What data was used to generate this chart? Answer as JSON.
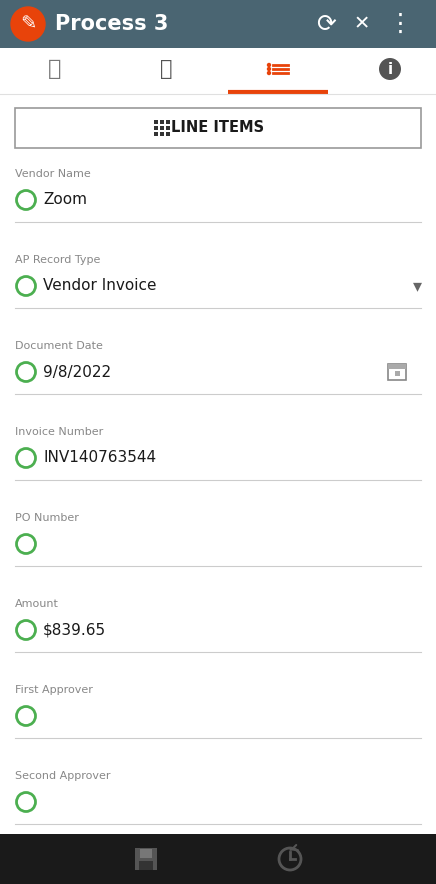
{
  "title": "Process 3",
  "header_bg": "#4a6572",
  "header_text_color": "#ffffff",
  "tab_underline_color": "#e8430a",
  "line_items_label": "LINE ITEMS",
  "fields": [
    {
      "label": "Vendor Name",
      "value": "Zoom",
      "has_dropdown": false,
      "has_calendar": false
    },
    {
      "label": "AP Record Type",
      "value": "Vendor Invoice",
      "has_dropdown": true,
      "has_calendar": false
    },
    {
      "label": "Document Date",
      "value": "9/8/2022",
      "has_dropdown": false,
      "has_calendar": true
    },
    {
      "label": "Invoice Number",
      "value": "INV140763544",
      "has_dropdown": false,
      "has_calendar": false
    },
    {
      "label": "PO Number",
      "value": "",
      "has_dropdown": false,
      "has_calendar": false
    },
    {
      "label": "Amount",
      "value": "$839.65",
      "has_dropdown": false,
      "has_calendar": false
    },
    {
      "label": "First Approver",
      "value": "",
      "has_dropdown": false,
      "has_calendar": false
    },
    {
      "label": "Second Approver",
      "value": "",
      "has_dropdown": false,
      "has_calendar": false
    }
  ],
  "circle_color": "#4caf50",
  "label_color": "#888888",
  "value_color": "#1a1a1a",
  "sep_color": "#cccccc",
  "bottom_bar_bg": "#1a1a1a",
  "fig_width": 4.36,
  "fig_height": 8.84,
  "dpi": 100
}
